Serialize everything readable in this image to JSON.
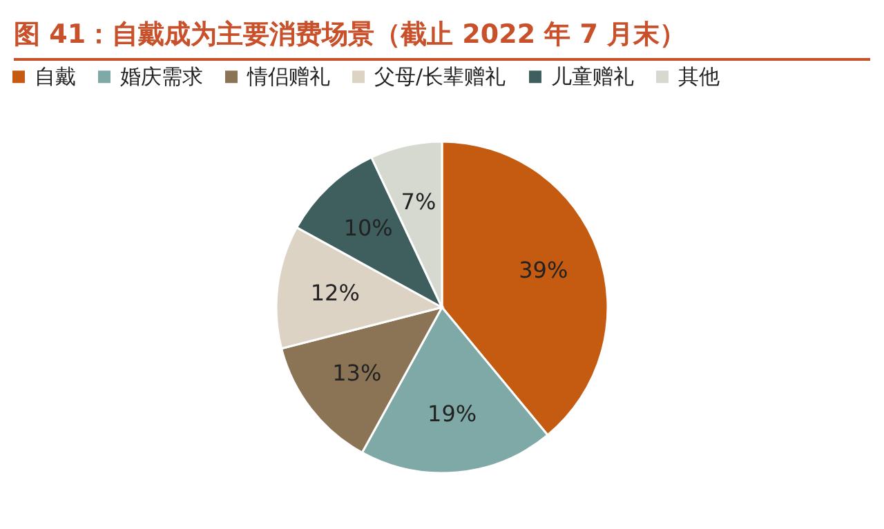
{
  "chart_data": {
    "type": "pie",
    "title": "图 41：自戴成为主要消费场景（截止 2022 年 7 月末）",
    "categories": [
      "自戴",
      "婚庆需求",
      "情侣赠礼",
      "父母/长辈赠礼",
      "儿童赠礼",
      "其他"
    ],
    "values": [
      39,
      19,
      13,
      12,
      10,
      7
    ],
    "colors": [
      "#c55a11",
      "#7fa9a6",
      "#8b7355",
      "#ddd3c4",
      "#3f5f5f",
      "#d5d9d0"
    ],
    "value_labels": [
      "39%",
      "19%",
      "13%",
      "12%",
      "10%",
      "7%"
    ],
    "legend": "top"
  }
}
